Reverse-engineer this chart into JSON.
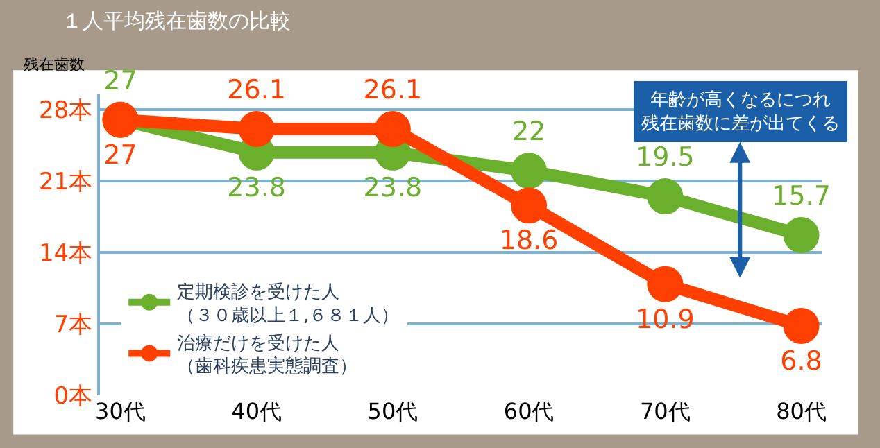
{
  "chart_data": {
    "type": "line",
    "title": "１人平均残在歯数の比較",
    "ylabel": "残在歯数",
    "categories": [
      "30代",
      "40代",
      "50代",
      "60代",
      "70代",
      "80代"
    ],
    "series": [
      {
        "name": "定期検診を受けた人（３０歳以上１,６８１人）",
        "color": "#6ab02c",
        "values": [
          27,
          23.8,
          23.8,
          22,
          19.5,
          15.7
        ]
      },
      {
        "name": "治療だけを受けた人（歯科疾患実態調査）",
        "color": "#ff4000",
        "values": [
          27,
          26.1,
          26.1,
          18.6,
          10.9,
          6.8
        ]
      }
    ],
    "ylim": [
      0,
      29.5
    ],
    "yticks": [
      {
        "value": 0,
        "label": "0本"
      },
      {
        "value": 7,
        "label": "7本"
      },
      {
        "value": 14,
        "label": "14本"
      },
      {
        "value": 21,
        "label": "21本"
      },
      {
        "value": 28,
        "label": "28本"
      }
    ],
    "grid": "y",
    "legend": "bottom left",
    "marker": "circle",
    "line_style": "solid",
    "data_labels": true,
    "annotations": [
      "年齢が高くなるにつれ残在歯数に差が出てくる"
    ]
  }
}
